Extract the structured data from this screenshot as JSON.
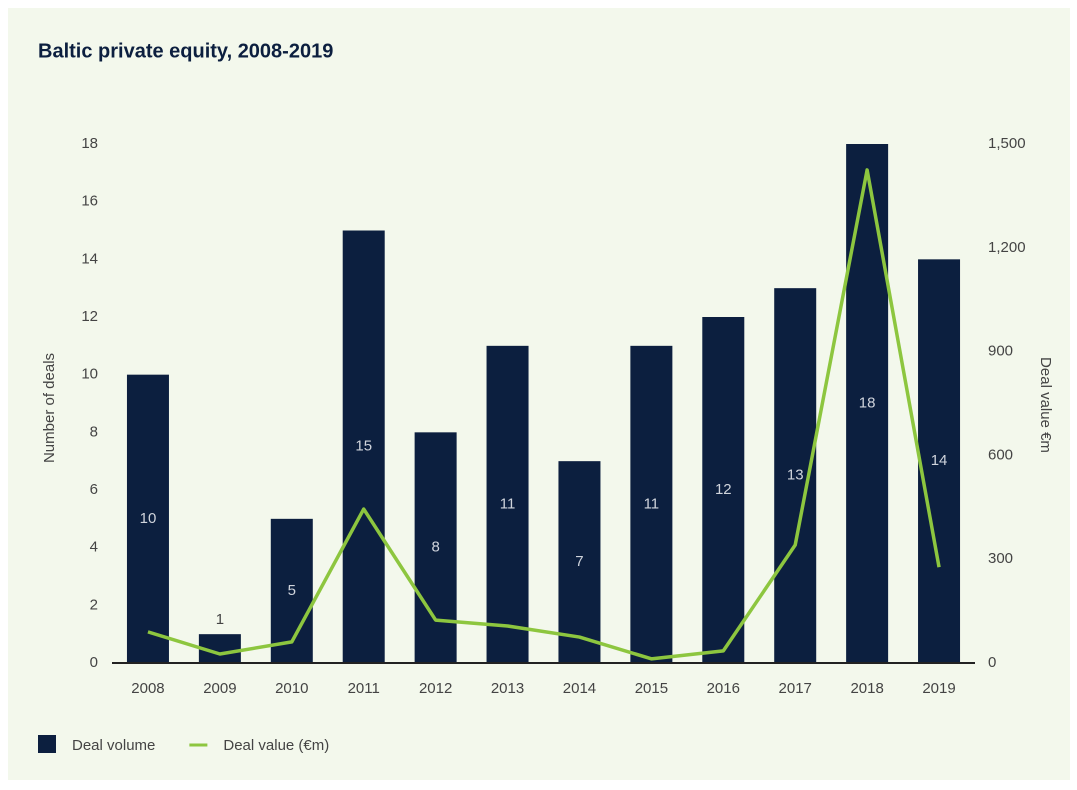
{
  "chart_data": {
    "type": "bar-line",
    "title": "Baltic private equity, 2008-2019",
    "categories": [
      "2008",
      "2009",
      "2010",
      "2011",
      "2012",
      "2013",
      "2014",
      "2015",
      "2016",
      "2017",
      "2018",
      "2019"
    ],
    "series": [
      {
        "name": "Deal volume",
        "type": "bar",
        "color": "#0c1f3f",
        "values": [
          10,
          1,
          5,
          15,
          8,
          11,
          7,
          11,
          12,
          13,
          18,
          14
        ]
      },
      {
        "name": "Deal value (€m)",
        "type": "line",
        "axis": "y2",
        "color": "#8dc63f",
        "values": [
          90,
          26,
          61,
          445,
          124,
          107,
          75,
          12,
          35,
          341,
          1425,
          277
        ]
      }
    ],
    "ylabel": "Number of deals",
    "y2label": "Deal value €m",
    "ylim": [
      0,
      18
    ],
    "yticks": [
      0,
      2,
      4,
      6,
      8,
      10,
      12,
      14,
      16,
      18
    ],
    "y2lim": [
      0,
      1500
    ],
    "y2ticks": [
      0,
      300,
      600,
      900,
      {
        "value": 1200,
        "label": "1,200"
      },
      {
        "value": 1500,
        "label": "1,500"
      }
    ],
    "grid": false,
    "legend": "bottom-left"
  }
}
